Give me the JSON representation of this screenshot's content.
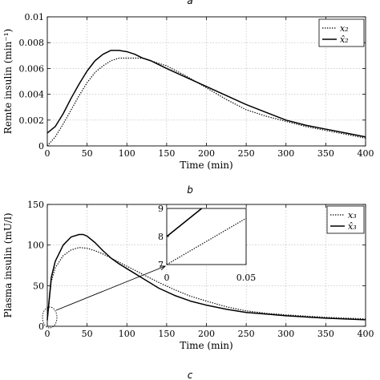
{
  "panel_labels": [
    "a",
    "b",
    "c"
  ],
  "chart_data": [
    {
      "type": "line",
      "panel": "b",
      "xlabel": "Time (min)",
      "ylabel": "Remte insulin (min⁻¹)",
      "xlim": [
        0,
        400
      ],
      "ylim": [
        0,
        0.01
      ],
      "xticks": [
        0,
        50,
        100,
        150,
        200,
        250,
        300,
        350,
        400
      ],
      "xtick_labels": [
        "0",
        "50",
        "100",
        "150",
        "200",
        "250",
        "300",
        "350",
        "400"
      ],
      "yticks": [
        0,
        0.002,
        0.004,
        0.006,
        0.008,
        0.01
      ],
      "ytick_labels": [
        "0",
        "0.002",
        "0.004",
        "0.006",
        "0.008",
        "0.01"
      ],
      "grid": true,
      "legend_position": "top-right",
      "series": [
        {
          "name": "x₂",
          "style": "dotted",
          "x": [
            0,
            10,
            20,
            30,
            40,
            50,
            60,
            70,
            80,
            90,
            100,
            110,
            120,
            130,
            140,
            150,
            175,
            200,
            225,
            250,
            275,
            300,
            325,
            350,
            375,
            400
          ],
          "y": [
            0,
            0.0007,
            0.0017,
            0.0028,
            0.0039,
            0.0049,
            0.0057,
            0.0062,
            0.0066,
            0.0068,
            0.0068,
            0.0068,
            0.0068,
            0.0066,
            0.0064,
            0.0062,
            0.0054,
            0.0045,
            0.0036,
            0.0028,
            0.0023,
            0.0019,
            0.0015,
            0.0012,
            0.0009,
            0.0006
          ]
        },
        {
          "name": "x̂₂",
          "style": "solid",
          "x": [
            0,
            10,
            20,
            30,
            40,
            50,
            60,
            70,
            80,
            90,
            100,
            110,
            120,
            130,
            140,
            150,
            175,
            200,
            225,
            250,
            275,
            300,
            325,
            350,
            375,
            400
          ],
          "y": [
            0.001,
            0.0015,
            0.0025,
            0.0037,
            0.0048,
            0.0058,
            0.0066,
            0.0071,
            0.0074,
            0.0074,
            0.0073,
            0.0071,
            0.0068,
            0.0066,
            0.0063,
            0.006,
            0.0053,
            0.0046,
            0.0039,
            0.0032,
            0.0026,
            0.002,
            0.0016,
            0.0013,
            0.001,
            0.0007
          ]
        }
      ]
    },
    {
      "type": "line",
      "panel": "c",
      "xlabel": "Time (min)",
      "ylabel": "Plasma insulin (mU/l)",
      "xlim": [
        0,
        400
      ],
      "ylim": [
        0,
        150
      ],
      "xticks": [
        0,
        50,
        100,
        150,
        200,
        250,
        300,
        350,
        400
      ],
      "xtick_labels": [
        "0",
        "50",
        "100",
        "150",
        "200",
        "250",
        "300",
        "350",
        "400"
      ],
      "yticks": [
        0,
        50,
        100,
        150
      ],
      "ytick_labels": [
        "0",
        "50",
        "100",
        "150"
      ],
      "grid": true,
      "legend_position": "top-right",
      "series": [
        {
          "name": "x₃",
          "style": "dotted",
          "x": [
            0,
            5,
            10,
            20,
            30,
            40,
            50,
            60,
            70,
            80,
            90,
            100,
            120,
            140,
            160,
            180,
            200,
            225,
            250,
            275,
            300,
            350,
            400
          ],
          "y": [
            7,
            55,
            72,
            87,
            94,
            97,
            96,
            93,
            89,
            84,
            79,
            74,
            64,
            54,
            45,
            37,
            31,
            24,
            19,
            16,
            14,
            11,
            9
          ]
        },
        {
          "name": "x̂₃",
          "style": "solid",
          "x": [
            0,
            5,
            10,
            20,
            30,
            40,
            45,
            50,
            60,
            70,
            80,
            90,
            100,
            120,
            140,
            160,
            180,
            200,
            225,
            250,
            275,
            300,
            350,
            400
          ],
          "y": [
            8,
            60,
            80,
            100,
            110,
            113,
            113,
            111,
            103,
            93,
            84,
            77,
            71,
            59,
            47,
            38,
            31,
            26,
            21,
            17,
            15,
            13,
            10,
            8
          ]
        }
      ],
      "inset": {
        "xlim": [
          0,
          0.05
        ],
        "ylim": [
          7,
          9
        ],
        "xticks": [
          0,
          0.05
        ],
        "xtick_labels": [
          "0",
          "0.05"
        ],
        "yticks": [
          7,
          8,
          9
        ],
        "ytick_labels": [
          "7",
          "8",
          "9"
        ],
        "series": [
          {
            "name": "x₃",
            "style": "dotted",
            "x": [
              0,
              0.05
            ],
            "y": [
              7,
              8.65
            ]
          },
          {
            "name": "x̂₃",
            "style": "solid",
            "x": [
              0,
              0.022
            ],
            "y": [
              8,
              9
            ]
          }
        ]
      }
    }
  ]
}
